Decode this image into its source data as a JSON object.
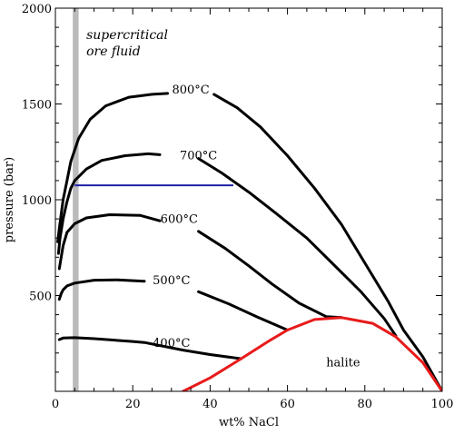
{
  "chart_data": {
    "type": "line",
    "xlabel": "wt% NaCl",
    "ylabel": "pressure (bar)",
    "xlim": [
      0,
      100
    ],
    "ylim": [
      0,
      2000
    ],
    "xticks": [
      0,
      20,
      40,
      60,
      80,
      100
    ],
    "yticks": [
      500,
      1000,
      1500,
      2000
    ],
    "grid": false,
    "annotations": [
      {
        "id": "supercritical",
        "lines": [
          "supercritical",
          "ore fluid"
        ],
        "x": 8,
        "y": 1840,
        "style": "italic"
      },
      {
        "id": "halite",
        "lines": [
          "halite"
        ],
        "x": 70,
        "y": 130,
        "style": "normal"
      }
    ],
    "band": {
      "x0": 4.5,
      "x1": 6.0,
      "color": "#bbbbbb"
    },
    "isopleth": {
      "x0": 5,
      "x1": 46,
      "y": 1075,
      "color": "#1f1fa8"
    },
    "series": [
      {
        "name": "400°C",
        "label": "400°C",
        "label_at": [
          30,
          232
        ],
        "color": "#000000",
        "points": [
          [
            1,
            270
          ],
          [
            2,
            278
          ],
          [
            5,
            280
          ],
          [
            10,
            275
          ],
          [
            20,
            260
          ],
          [
            23,
            255
          ],
          [
            33,
            215
          ],
          [
            40,
            192
          ],
          [
            48,
            170
          ]
        ]
      },
      {
        "name": "500°C",
        "label": "500°C",
        "label_at": [
          30,
          560
        ],
        "color": "#000000",
        "points": [
          [
            1,
            480
          ],
          [
            1.5,
            510
          ],
          [
            2,
            530
          ],
          [
            3,
            550
          ],
          [
            5,
            565
          ],
          [
            10,
            580
          ],
          [
            16,
            582
          ],
          [
            23,
            575
          ]
        ],
        "points_b": [
          [
            37,
            520
          ],
          [
            45,
            455
          ],
          [
            52,
            390
          ],
          [
            60,
            320
          ]
        ]
      },
      {
        "name": "600°C",
        "label": "600°C",
        "label_at": [
          32,
          880
        ],
        "color": "#000000",
        "points": [
          [
            1,
            640
          ],
          [
            1.5,
            700
          ],
          [
            2,
            760
          ],
          [
            3,
            830
          ],
          [
            5,
            875
          ],
          [
            8,
            905
          ],
          [
            14,
            922
          ],
          [
            22,
            918
          ],
          [
            27,
            890
          ]
        ],
        "points_b": [
          [
            37,
            835
          ],
          [
            44,
            745
          ],
          [
            50,
            655
          ],
          [
            56,
            560
          ],
          [
            63,
            460
          ],
          [
            70,
            390
          ],
          [
            74,
            385
          ]
        ]
      },
      {
        "name": "700°C",
        "label": "700°C",
        "label_at": [
          37,
          1210
        ],
        "color": "#000000",
        "points": [
          [
            0.8,
            720
          ],
          [
            1.2,
            800
          ],
          [
            2,
            900
          ],
          [
            3,
            990
          ],
          [
            4,
            1060
          ],
          [
            5,
            1100
          ],
          [
            8,
            1160
          ],
          [
            12,
            1205
          ],
          [
            18,
            1230
          ],
          [
            24,
            1240
          ],
          [
            27,
            1235
          ]
        ],
        "points_b": [
          [
            37,
            1215
          ],
          [
            43,
            1140
          ],
          [
            50,
            1040
          ],
          [
            57,
            930
          ],
          [
            65,
            800
          ],
          [
            72,
            660
          ],
          [
            79,
            520
          ],
          [
            85,
            380
          ],
          [
            88,
            290
          ]
        ]
      },
      {
        "name": "800°C",
        "label": "800°C",
        "label_at": [
          35,
          1555
        ],
        "color": "#000000",
        "points": [
          [
            0.6,
            780
          ],
          [
            1,
            850
          ],
          [
            2,
            1000
          ],
          [
            3,
            1100
          ],
          [
            4,
            1200
          ],
          [
            6,
            1320
          ],
          [
            9,
            1420
          ],
          [
            13,
            1490
          ],
          [
            19,
            1535
          ],
          [
            25,
            1550
          ],
          [
            29,
            1555
          ]
        ],
        "points_b": [
          [
            41,
            1550
          ],
          [
            47,
            1480
          ],
          [
            53,
            1380
          ],
          [
            60,
            1230
          ],
          [
            67,
            1060
          ],
          [
            74,
            870
          ],
          [
            80,
            670
          ],
          [
            86,
            470
          ],
          [
            90,
            320
          ],
          [
            95,
            180
          ],
          [
            100,
            0
          ]
        ]
      },
      {
        "name": "halite",
        "label": "",
        "color": "#e81a1a",
        "points": [
          [
            33,
            0
          ],
          [
            40,
            70
          ],
          [
            48,
            170
          ],
          [
            55,
            260
          ],
          [
            60,
            320
          ],
          [
            67,
            375
          ],
          [
            74,
            385
          ],
          [
            82,
            355
          ],
          [
            88,
            285
          ],
          [
            95,
            150
          ],
          [
            100,
            0
          ]
        ]
      }
    ]
  }
}
